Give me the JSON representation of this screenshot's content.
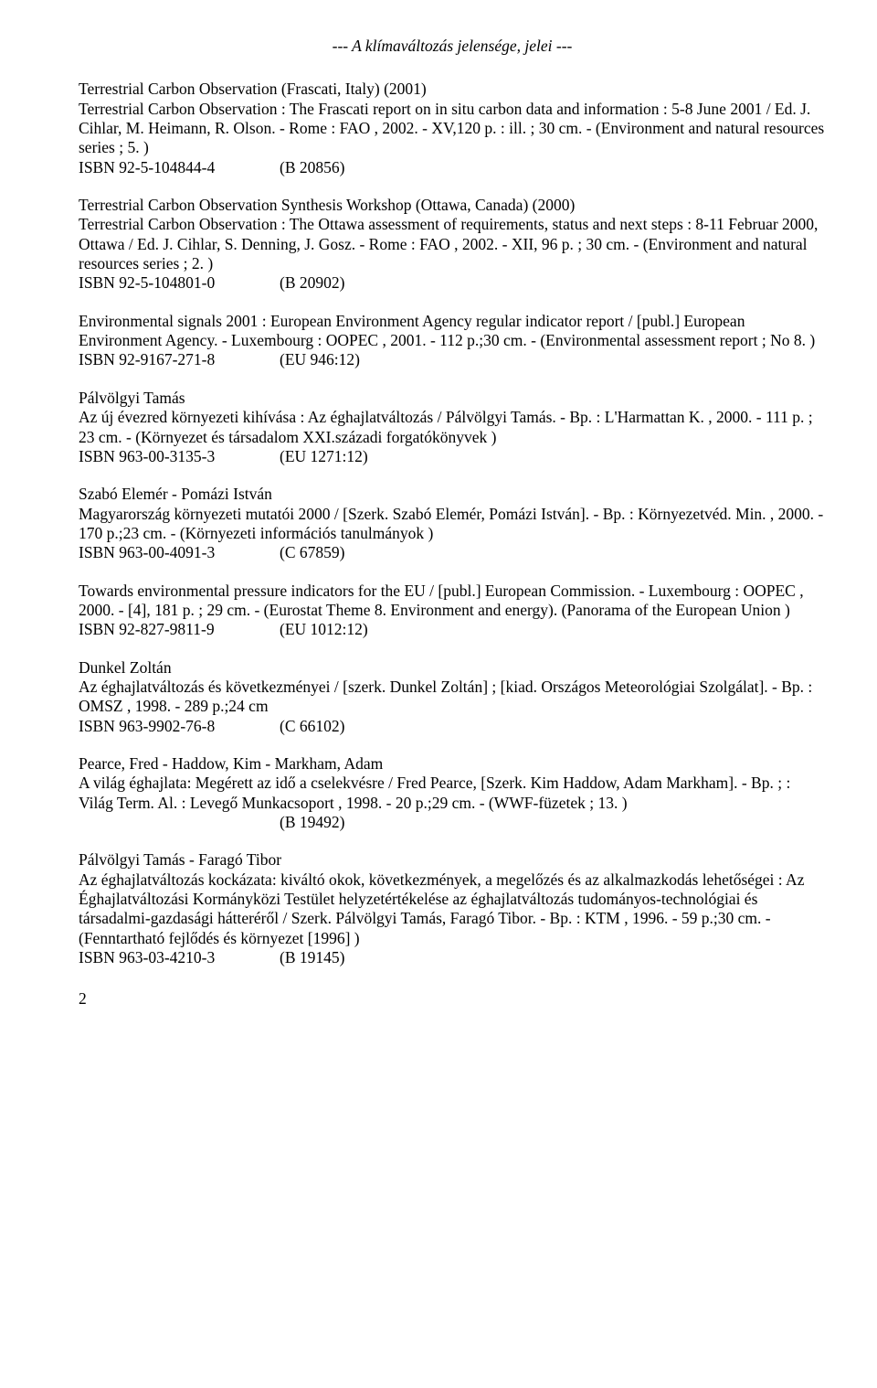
{
  "header": "--- A klímaváltozás jelensége, jelei ---",
  "entries": [
    {
      "body": "Terrestrial Carbon Observation (Frascati, Italy) (2001)\nTerrestrial Carbon Observation : The Frascati report on in situ carbon data and information : 5-8 June 2001 / Ed. J. Cihlar, M. Heimann, R. Olson. - Rome : FAO , 2002. - XV,120 p. : ill. ; 30 cm. - (Environment and natural resources series ; 5. )",
      "isbn": "ISBN 92-5-104844-4",
      "code": "(B 20856)"
    },
    {
      "body": "Terrestrial Carbon Observation Synthesis Workshop (Ottawa, Canada) (2000)\nTerrestrial Carbon Observation : The Ottawa assessment of requirements, status and next steps : 8-11 Februar 2000, Ottawa / Ed. J. Cihlar, S. Denning, J. Gosz. - Rome : FAO , 2002. - XII, 96 p. ; 30 cm. - (Environment and natural resources series ; 2. )",
      "isbn": "ISBN 92-5-104801-0",
      "code": "(B 20902)"
    },
    {
      "body": "Environmental signals 2001 : European Environment Agency regular indicator report / [publ.] European Environment Agency. - Luxembourg : OOPEC , 2001. - 112 p.;30 cm. - (Environmental assessment report ; No 8. )",
      "isbn": "ISBN 92-9167-271-8",
      "code": "(EU 946:12)"
    },
    {
      "body": "Pálvölgyi Tamás\nAz új évezred környezeti kihívása : Az éghajlatváltozás / Pálvölgyi Tamás. - Bp. : L'Harmattan K. , 2000. - 111 p. ; 23 cm. - (Környezet és társadalom XXI.századi forgatókönyvek )",
      "isbn": "ISBN 963-00-3135-3",
      "code": "(EU 1271:12)"
    },
    {
      "body": "Szabó Elemér - Pomázi István\nMagyarország környezeti mutatói 2000 / [Szerk. Szabó Elemér, Pomázi István]. - Bp. : Környezetvéd. Min. , 2000. - 170 p.;23 cm. - (Környezeti információs tanulmányok )",
      "isbn": "ISBN 963-00-4091-3",
      "code": "(C 67859)"
    },
    {
      "body": "Towards environmental pressure indicators for the EU / [publ.] European Commission. - Luxembourg : OOPEC , 2000. - [4], 181 p. ; 29 cm. - (Eurostat Theme 8. Environment and energy). (Panorama of the European Union )",
      "isbn": "ISBN 92-827-9811-9",
      "code": "(EU 1012:12)"
    },
    {
      "body": "Dunkel Zoltán\nAz éghajlatváltozás és következményei / [szerk. Dunkel Zoltán] ; [kiad. Országos Meteorológiai Szolgálat]. - Bp. : OMSZ , 1998. - 289 p.;24 cm",
      "isbn": "ISBN 963-9902-76-8",
      "code": "(C 66102)"
    },
    {
      "body": "Pearce, Fred - Haddow, Kim - Markham, Adam\nA világ éghajlata: Megérett az idő a cselekvésre / Fred Pearce, [Szerk. Kim Haddow, Adam Markham]. - Bp. ; : Világ Term. Al. : Levegő Munkacsoport , 1998. - 20 p.;29 cm. - (WWF-füzetek ; 13. )",
      "isbn": "",
      "code": "(B 19492)"
    },
    {
      "body": "Pálvölgyi Tamás - Faragó Tibor\nAz éghajlatváltozás kockázata: kiváltó okok, következmények, a megelőzés és az alkalmazkodás lehetőségei : Az Éghajlatváltozási Kormányközi Testület helyzetértékelése az éghajlatváltozás tudományos-technológiai és társadalmi-gazdasági hátteréről / Szerk. Pálvölgyi Tamás, Faragó Tibor. - Bp. : KTM , 1996. - 59 p.;30 cm. - (Fenntartható fejlődés és környezet [1996] )",
      "isbn": "ISBN 963-03-4210-3",
      "code": "(B 19145)"
    }
  ],
  "pageNumber": "2"
}
